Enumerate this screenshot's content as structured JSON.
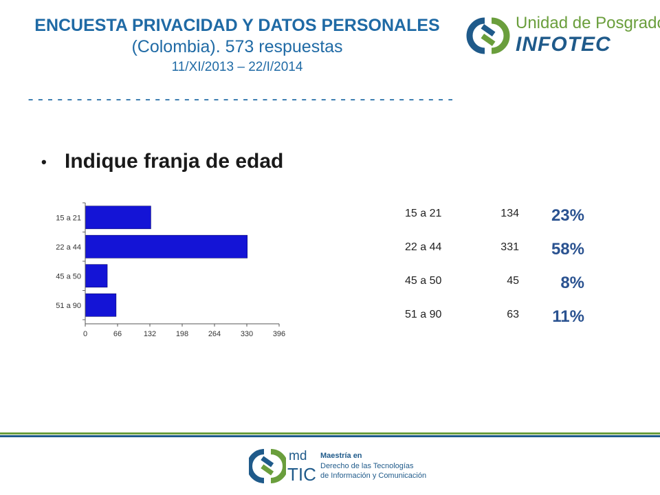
{
  "header": {
    "title": "ENCUESTA PRIVACIDAD Y DATOS PERSONALES",
    "subtitle": "(Colombia). 573 respuestas",
    "dates": "11/XI/2013 – 22/I/2014",
    "dashes": "----------------------------------------------------------------"
  },
  "logo_top": {
    "line1": "Unidad de Posgrados",
    "line2": "INFOTEC"
  },
  "question": {
    "bullet": "•",
    "text": "Indique franja de edad"
  },
  "chart_data": {
    "type": "bar",
    "orientation": "horizontal",
    "categories": [
      "15 a 21",
      "22 a 44",
      "45 a 50",
      "51 a 90"
    ],
    "values": [
      134,
      331,
      45,
      63
    ],
    "xlim": [
      0,
      396
    ],
    "xticks": [
      0,
      66,
      132,
      198,
      264,
      330,
      396
    ],
    "grid": false,
    "bar_color": "#1414d6"
  },
  "table": {
    "rows": [
      {
        "category": "15 a 21",
        "count": "134",
        "percent": "23%"
      },
      {
        "category": "22 a 44",
        "count": "331",
        "percent": "58%"
      },
      {
        "category": "45 a 50",
        "count": "45",
        "percent": "8%"
      },
      {
        "category": "51 a 90",
        "count": "63",
        "percent": "11%"
      }
    ]
  },
  "footer": {
    "md": "md",
    "tic": "TIC",
    "line1": "Maestría en",
    "line2": "Derecho de las Tecnologías",
    "line3": "de Información y Comunicación"
  },
  "colors": {
    "title_blue": "#1f6aa5",
    "rule_green": "#6a9e3c",
    "rule_blue": "#1f5a8a"
  }
}
